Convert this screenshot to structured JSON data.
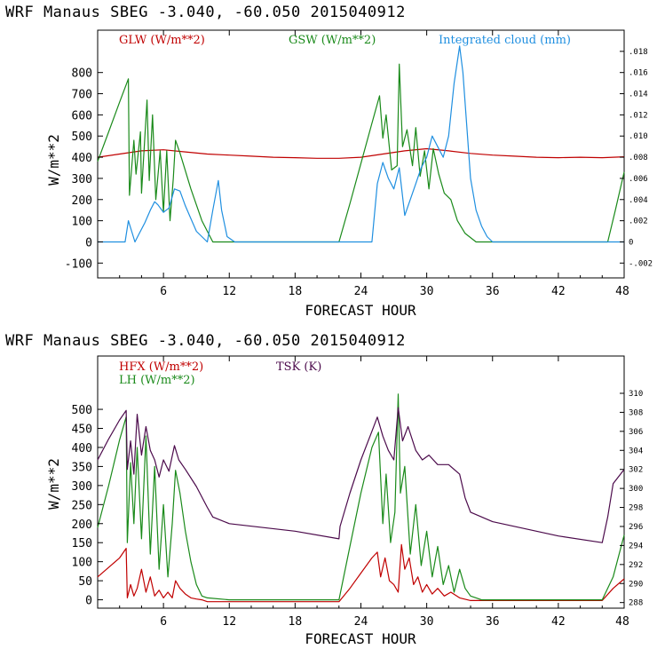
{
  "chart_data": [
    {
      "type": "line",
      "title": "WRF  Manaus SBEG   -3.040, -60.050  2015040912",
      "xlabel": "FORECAST HOUR",
      "ylabel": "W/m**2",
      "xlim": [
        0,
        48
      ],
      "ylim": [
        -170,
        1000
      ],
      "x_ticks": [
        6,
        12,
        18,
        24,
        30,
        36,
        42,
        48
      ],
      "y_ticks": [
        -100,
        0,
        100,
        200,
        300,
        400,
        500,
        600,
        700,
        800
      ],
      "right_axis": {
        "label": "Integrated cloud (mm)",
        "ylim": [
          -0.0034,
          0.02
        ],
        "ticks": [
          -0.002,
          0,
          0.002,
          0.004,
          0.006,
          0.008,
          0.01,
          0.012,
          0.014,
          0.016,
          0.018
        ],
        "tick_labels": [
          "-.002",
          "0",
          ".002",
          ".004",
          ".006",
          ".008",
          ".010",
          ".012",
          ".014",
          ".016",
          ".018"
        ]
      },
      "legend": [
        {
          "label": "GLW (W/m**2)",
          "color": "#c00000"
        },
        {
          "label": "GSW (W/m**2)",
          "color": "#1a8a1a"
        },
        {
          "label": "Integrated cloud (mm)",
          "color": "#1f8fe0"
        }
      ],
      "series": [
        {
          "name": "GLW",
          "color": "#c00000",
          "axis": "left",
          "x": [
            0,
            2,
            4,
            6,
            8,
            10,
            12,
            14,
            16,
            18,
            20,
            22,
            24,
            26,
            28,
            30,
            32,
            34,
            36,
            38,
            40,
            42,
            44,
            46,
            48
          ],
          "y": [
            400,
            415,
            430,
            435,
            425,
            415,
            410,
            405,
            400,
            398,
            395,
            395,
            400,
            415,
            430,
            440,
            430,
            418,
            410,
            405,
            400,
            398,
            400,
            398,
            402
          ]
        },
        {
          "name": "GSW",
          "color": "#1a8a1a",
          "axis": "left",
          "x": [
            0,
            1,
            2,
            2.8,
            2.9,
            3.3,
            3.5,
            3.9,
            4.0,
            4.5,
            4.7,
            5.0,
            5.3,
            5.7,
            6.0,
            6.3,
            6.6,
            6.9,
            7.1,
            7.5,
            8.5,
            9.5,
            10.5,
            11,
            22,
            23,
            24,
            25,
            25.7,
            26,
            26.3,
            26.8,
            27.3,
            27.5,
            27.8,
            28.2,
            28.7,
            29.0,
            29.4,
            29.8,
            30.2,
            30.6,
            31.1,
            31.6,
            32.2,
            32.8,
            33.5,
            34.5,
            35.5,
            36,
            46.5,
            47.2,
            48
          ],
          "y": [
            380,
            520,
            660,
            770,
            220,
            480,
            320,
            520,
            230,
            670,
            290,
            600,
            200,
            430,
            140,
            430,
            100,
            300,
            480,
            420,
            250,
            100,
            0,
            0,
            0,
            180,
            370,
            560,
            690,
            490,
            600,
            340,
            360,
            840,
            450,
            530,
            360,
            540,
            310,
            430,
            250,
            440,
            320,
            230,
            200,
            100,
            40,
            0,
            0,
            0,
            0,
            150,
            330
          ]
        },
        {
          "name": "Integrated cloud",
          "color": "#1f8fe0",
          "axis": "right",
          "x": [
            0,
            2.5,
            2.8,
            3.1,
            3.4,
            3.8,
            4.3,
            4.8,
            5.2,
            5.5,
            6.0,
            6.5,
            7.0,
            7.5,
            8.0,
            8.5,
            9.0,
            10.0,
            10.5,
            11.0,
            11.3,
            11.8,
            12.5,
            25,
            25.5,
            26,
            26.5,
            27,
            27.5,
            28,
            28.5,
            29,
            29.5,
            30,
            30.5,
            31,
            31.5,
            32,
            32.5,
            33,
            33.3,
            34,
            34.5,
            35,
            35.5,
            36,
            48
          ],
          "y": [
            0,
            0,
            0.002,
            0.001,
            0.0,
            0.0008,
            0.0018,
            0.003,
            0.0038,
            0.0035,
            0.0028,
            0.0032,
            0.005,
            0.0048,
            0.0034,
            0.0022,
            0.001,
            0.0,
            0.003,
            0.0058,
            0.003,
            0.0005,
            0,
            0,
            0.0055,
            0.0075,
            0.006,
            0.005,
            0.007,
            0.0025,
            0.004,
            0.0055,
            0.007,
            0.008,
            0.01,
            0.009,
            0.008,
            0.01,
            0.015,
            0.0185,
            0.016,
            0.006,
            0.003,
            0.0015,
            0.0005,
            0,
            0
          ]
        }
      ]
    },
    {
      "type": "line",
      "title": "WRF  Manaus SBEG   -3.040, -60.050  2015040912",
      "xlabel": "FORECAST HOUR",
      "ylabel": "W/m**2",
      "xlim": [
        0,
        48
      ],
      "ylim": [
        -22,
        640
      ],
      "x_ticks": [
        6,
        12,
        18,
        24,
        30,
        36,
        42,
        48
      ],
      "y_ticks": [
        0,
        50,
        100,
        150,
        200,
        250,
        300,
        350,
        400,
        450,
        500
      ],
      "right_axis": {
        "label": "TSK (K)",
        "ylim": [
          287.41,
          313.92
        ],
        "ticks": [
          288,
          290,
          292,
          294,
          296,
          298,
          300,
          302,
          304,
          306,
          308,
          310
        ],
        "tick_labels": [
          "288",
          "290",
          "292",
          "294",
          "296",
          "298",
          "300",
          "302",
          "304",
          "306",
          "308",
          "310"
        ]
      },
      "legend": [
        {
          "label": "HFX (W/m**2)",
          "color": "#c00000"
        },
        {
          "label": "LH  (W/m**2)",
          "color": "#1a8a1a"
        },
        {
          "label": "TSK (K)",
          "color": "#4b0a4b"
        }
      ],
      "series": [
        {
          "name": "HFX",
          "color": "#c00000",
          "axis": "left",
          "x": [
            0,
            1,
            2,
            2.6,
            2.7,
            3.0,
            3.3,
            3.6,
            4.0,
            4.4,
            4.8,
            5.2,
            5.6,
            6.0,
            6.4,
            6.8,
            7.1,
            7.5,
            8.0,
            8.5,
            9.0,
            9.5,
            10,
            22,
            23,
            24,
            25,
            25.5,
            25.8,
            26.2,
            26.6,
            27.0,
            27.4,
            27.7,
            28.0,
            28.4,
            28.8,
            29.2,
            29.6,
            30.0,
            30.5,
            31.0,
            31.6,
            32.2,
            33,
            34,
            46,
            47,
            48
          ],
          "y": [
            60,
            85,
            110,
            135,
            5,
            40,
            10,
            30,
            80,
            20,
            60,
            10,
            25,
            5,
            20,
            5,
            50,
            30,
            15,
            5,
            2,
            0,
            -5,
            -5,
            30,
            70,
            110,
            125,
            60,
            110,
            50,
            40,
            20,
            145,
            80,
            110,
            40,
            60,
            20,
            40,
            15,
            30,
            10,
            20,
            5,
            -2,
            -2,
            30,
            55
          ]
        },
        {
          "name": "LH",
          "color": "#1a8a1a",
          "axis": "left",
          "x": [
            0,
            1,
            2,
            2.6,
            2.7,
            3.0,
            3.3,
            3.6,
            4.0,
            4.4,
            4.8,
            5.2,
            5.6,
            6.0,
            6.4,
            6.8,
            7.1,
            7.5,
            8.0,
            8.5,
            9.0,
            9.5,
            10,
            12,
            22,
            23,
            24,
            25,
            25.6,
            26.0,
            26.3,
            26.7,
            27.1,
            27.4,
            27.6,
            28.0,
            28.5,
            29.0,
            29.5,
            30.0,
            30.5,
            31.0,
            31.5,
            32.0,
            32.5,
            33.0,
            33.5,
            34.0,
            35,
            46,
            47,
            48
          ],
          "y": [
            190,
            300,
            420,
            480,
            150,
            360,
            200,
            400,
            160,
            430,
            120,
            350,
            80,
            250,
            60,
            200,
            340,
            280,
            180,
            100,
            40,
            10,
            5,
            0,
            0,
            140,
            280,
            400,
            440,
            200,
            330,
            150,
            230,
            540,
            280,
            350,
            120,
            250,
            90,
            180,
            60,
            140,
            40,
            90,
            20,
            80,
            30,
            10,
            0,
            0,
            60,
            170
          ]
        },
        {
          "name": "TSK",
          "color": "#4b0a4b",
          "axis": "right",
          "x": [
            0,
            1,
            2,
            2.6,
            2.7,
            3.0,
            3.3,
            3.6,
            4.0,
            4.4,
            4.8,
            5.2,
            5.6,
            6.0,
            6.5,
            7.0,
            7.4,
            8.0,
            9.0,
            10.0,
            10.5,
            12,
            18,
            22,
            22.1,
            23,
            24,
            25,
            25.5,
            26.0,
            26.5,
            27.0,
            27.4,
            27.8,
            28.3,
            29.0,
            29.6,
            30.2,
            31.0,
            32.0,
            33.0,
            33.5,
            34.0,
            36,
            42,
            46,
            46.5,
            47,
            48
          ],
          "y": [
            303.0,
            305.2,
            307.2,
            308.2,
            302.0,
            305.0,
            301.5,
            307.8,
            303.5,
            306.5,
            304.0,
            303.0,
            301.2,
            303.0,
            301.8,
            304.5,
            303.0,
            302.0,
            300.2,
            298.0,
            297.0,
            296.3,
            295.5,
            294.7,
            296.0,
            299.5,
            303.0,
            306.0,
            307.5,
            305.5,
            304.0,
            303.0,
            308.5,
            305.0,
            306.5,
            304.0,
            303.0,
            303.5,
            302.5,
            302.5,
            301.5,
            299.0,
            297.5,
            296.5,
            295.0,
            294.3,
            297.0,
            300.5,
            302.0
          ]
        }
      ]
    }
  ]
}
